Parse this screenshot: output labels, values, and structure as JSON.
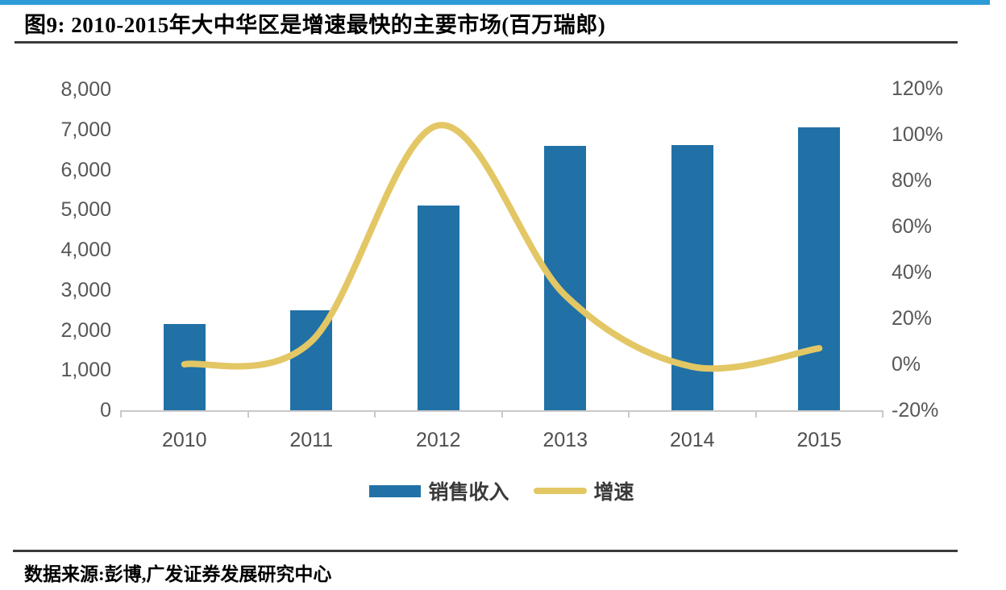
{
  "page": {
    "accent_strip_color": "#2D9BD8",
    "rule_color": "#3B3B3B",
    "axis_line_color": "#c9c9c9",
    "axis_text_color": "#575757"
  },
  "document": {
    "source": "数据来源:彭博,广发证券发展研究中心"
  },
  "chart_data": {
    "type": "combo: bar + line (dual axis)",
    "title": "图9:  2010-2015年大中华区是增速最快的主要市场(百万瑞郎)",
    "categories": [
      "2010",
      "2011",
      "2012",
      "2013",
      "2014",
      "2015"
    ],
    "series": [
      {
        "name": "销售收入",
        "type": "bar",
        "axis": "left",
        "color": "#2171A6",
        "values": [
          2150,
          2500,
          5100,
          6600,
          6620,
          7050
        ]
      },
      {
        "name": "增速",
        "type": "line",
        "axis": "right",
        "color": "#E3C765",
        "values_pct": [
          0,
          10,
          104,
          30,
          -1,
          7
        ]
      }
    ],
    "left_axis": {
      "min": 0,
      "max": 8000,
      "step": 1000,
      "tick_labels": [
        "8,000",
        "7,000",
        "6,000",
        "5,000",
        "4,000",
        "3,000",
        "2,000",
        "1,000",
        "0"
      ]
    },
    "right_axis": {
      "min": -20,
      "max": 120,
      "step": 20,
      "tick_labels": [
        "120%",
        "100%",
        "80%",
        "60%",
        "40%",
        "20%",
        "0%",
        "-20%"
      ]
    },
    "legend": {
      "position": "bottom-center",
      "entries": [
        "销售收入",
        "增速"
      ]
    },
    "grid": false,
    "smoothed_line": true
  }
}
